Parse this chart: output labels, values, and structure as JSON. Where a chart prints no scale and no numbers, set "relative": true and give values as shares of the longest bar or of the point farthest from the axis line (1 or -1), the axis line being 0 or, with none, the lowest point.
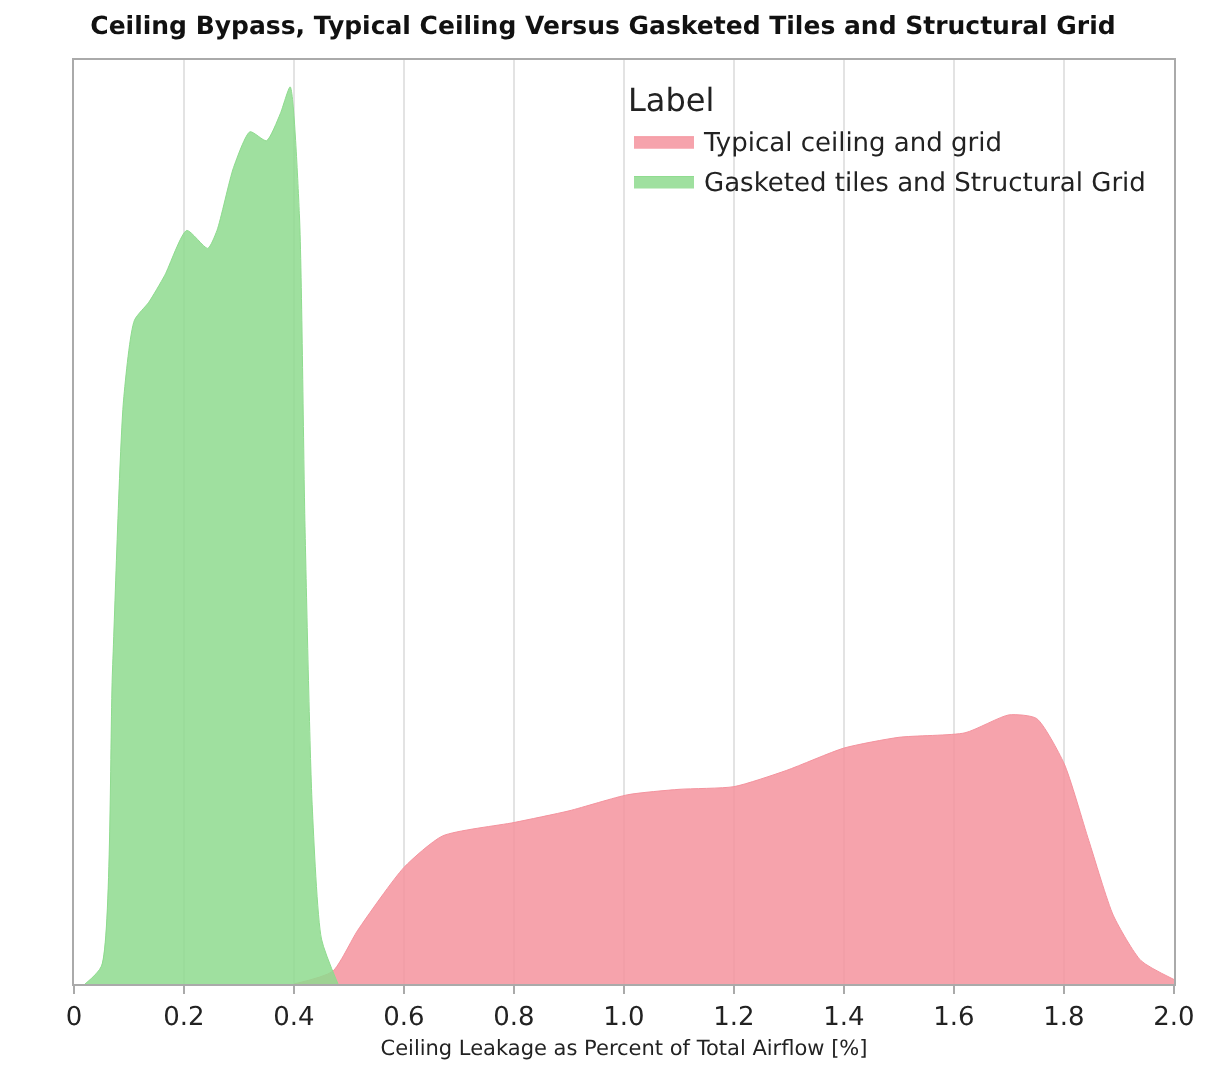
{
  "chart_data": {
    "type": "area",
    "title": "Ceiling Bypass, Typical Ceiling Versus Gasketed Tiles and Structural Grid",
    "xlabel": "Ceiling Leakage as Percent of Total Airflow [%]",
    "legend_title": "Label",
    "relative": true,
    "xlim": [
      0,
      2.0
    ],
    "xticks": [
      0,
      {
        "value": 0.2,
        "label": "0.2"
      },
      {
        "value": 0.4,
        "label": "0.4"
      },
      {
        "value": 0.6,
        "label": "0.6"
      },
      {
        "value": 0.8,
        "label": "0.8"
      },
      {
        "value": 1.0,
        "label": "1.0"
      },
      {
        "value": 1.2,
        "label": "1.2"
      },
      {
        "value": 1.4,
        "label": "1.4"
      },
      {
        "value": 1.6,
        "label": "1.6"
      },
      {
        "value": 1.8,
        "label": "1.8"
      },
      {
        "value": 2.0,
        "label": "2.0"
      }
    ],
    "grid": "x",
    "legend": "top right",
    "tick_labels": "x",
    "series": [
      {
        "name": "Typical ceiling and grid",
        "color": "#f4939e",
        "x": [
          0.4,
          0.47,
          0.516,
          0.6,
          0.67,
          0.8,
          0.9,
          1.007,
          1.1,
          1.2,
          1.295,
          1.4,
          1.5,
          1.62,
          1.7,
          1.75,
          1.8,
          1.845,
          1.89,
          1.94,
          2.0
        ],
        "values": [
          0,
          0.014,
          0.06,
          0.13,
          0.165,
          0.18,
          0.193,
          0.211,
          0.217,
          0.22,
          0.238,
          0.263,
          0.275,
          0.28,
          0.3,
          0.296,
          0.246,
          0.16,
          0.076,
          0.026,
          0.005
        ]
      },
      {
        "name": "Gasketed tiles and Structural Grid",
        "color": "#8edb8e",
        "x": [
          0.02,
          0.05,
          0.07,
          0.09,
          0.11,
          0.136,
          0.165,
          0.205,
          0.243,
          0.26,
          0.29,
          0.32,
          0.35,
          0.375,
          0.393,
          0.41,
          0.42,
          0.433,
          0.45,
          0.48
        ],
        "values": [
          0,
          0.02,
          0.35,
          0.65,
          0.74,
          0.76,
          0.79,
          0.84,
          0.82,
          0.84,
          0.91,
          0.95,
          0.94,
          0.97,
          1,
          0.855,
          0.51,
          0.2,
          0.05,
          0
        ]
      }
    ]
  }
}
